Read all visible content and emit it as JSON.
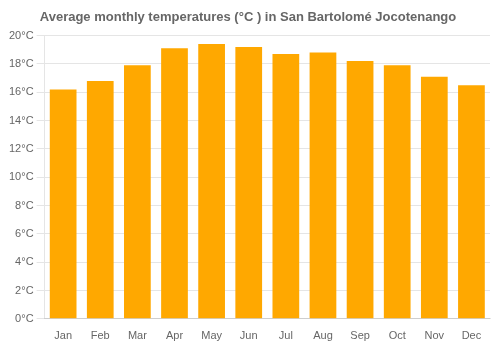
{
  "chart_data": {
    "type": "bar",
    "title": "Average monthly temperatures (°C ) in San Bartolomé Jocotenango",
    "categories": [
      "Jan",
      "Feb",
      "Mar",
      "Apr",
      "May",
      "Jun",
      "Jul",
      "Aug",
      "Sep",
      "Oct",
      "Nov",
      "Dec"
    ],
    "values": [
      16.2,
      16.8,
      17.9,
      19.1,
      19.4,
      19.2,
      18.7,
      18.8,
      18.2,
      17.9,
      17.1,
      16.5
    ],
    "color": "#FFA800",
    "ylim": [
      0,
      20
    ],
    "yticks": [
      {
        "value": 0,
        "label": "0°C"
      },
      {
        "value": 2,
        "label": "2°C"
      },
      {
        "value": 4,
        "label": "4°C"
      },
      {
        "value": 6,
        "label": "6°C"
      },
      {
        "value": 8,
        "label": "8°C"
      },
      {
        "value": 10,
        "label": "10°C"
      },
      {
        "value": 12,
        "label": "12°C"
      },
      {
        "value": 14,
        "label": "14°C"
      },
      {
        "value": 16,
        "label": "16°C"
      },
      {
        "value": 18,
        "label": "18°C"
      },
      {
        "value": 20,
        "label": "20°C"
      }
    ],
    "grid": true
  }
}
